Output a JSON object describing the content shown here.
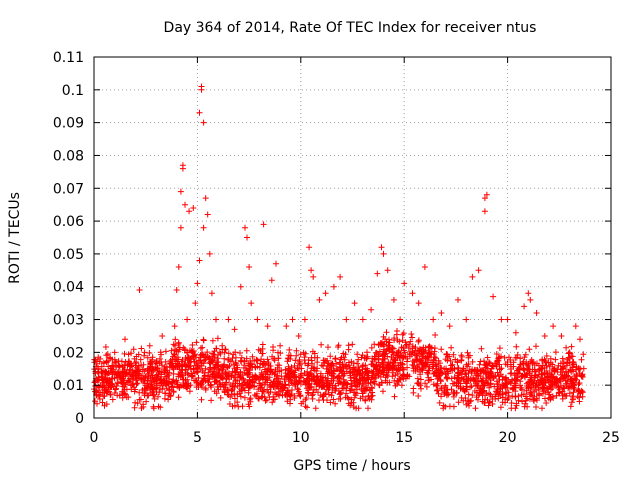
{
  "chart_data": {
    "type": "scatter",
    "title": "Day 364 of 2014, Rate Of TEC Index for receiver ntus",
    "xlabel": "GPS time / hours",
    "ylabel": "ROTI / TECUs",
    "xlim": [
      0,
      25
    ],
    "ylim": [
      0,
      0.11
    ],
    "xticks": [
      0,
      5,
      10,
      15,
      20,
      25
    ],
    "xtick_labels": [
      "0",
      "5",
      "10",
      "15",
      "20",
      "25"
    ],
    "yticks": [
      0,
      0.01,
      0.02,
      0.03,
      0.04,
      0.05,
      0.06,
      0.07,
      0.08,
      0.09,
      0.1,
      0.11
    ],
    "ytick_labels": [
      "0",
      "0.01",
      "0.02",
      "0.03",
      "0.04",
      "0.05",
      "0.06",
      "0.07",
      "0.08",
      "0.09",
      "0.1",
      "0.11"
    ],
    "grid": true,
    "marker": "+",
    "color": "#ff0000",
    "series": [
      {
        "name": "ROTI",
        "note": "dense band ~0.005-0.025 from 0 to 23.7 h; representative points listed",
        "points": [
          [
            0.1,
            0.012
          ],
          [
            0.3,
            0.018
          ],
          [
            0.5,
            0.01
          ],
          [
            0.8,
            0.015
          ],
          [
            1.0,
            0.02
          ],
          [
            1.3,
            0.011
          ],
          [
            1.5,
            0.024
          ],
          [
            1.7,
            0.014
          ],
          [
            2.0,
            0.016
          ],
          [
            2.2,
            0.039
          ],
          [
            2.4,
            0.012
          ],
          [
            2.7,
            0.022
          ],
          [
            3.0,
            0.017
          ],
          [
            3.3,
            0.025
          ],
          [
            3.6,
            0.013
          ],
          [
            3.9,
            0.028
          ],
          [
            4.0,
            0.039
          ],
          [
            4.1,
            0.046
          ],
          [
            4.2,
            0.058
          ],
          [
            4.2,
            0.069
          ],
          [
            4.3,
            0.076
          ],
          [
            4.3,
            0.077
          ],
          [
            4.4,
            0.065
          ],
          [
            4.5,
            0.03
          ],
          [
            4.6,
            0.063
          ],
          [
            4.8,
            0.064
          ],
          [
            4.9,
            0.035
          ],
          [
            5.0,
            0.041
          ],
          [
            5.1,
            0.048
          ],
          [
            5.1,
            0.093
          ],
          [
            5.2,
            0.1
          ],
          [
            5.2,
            0.101
          ],
          [
            5.3,
            0.09
          ],
          [
            5.3,
            0.058
          ],
          [
            5.4,
            0.067
          ],
          [
            5.5,
            0.062
          ],
          [
            5.6,
            0.05
          ],
          [
            5.7,
            0.038
          ],
          [
            5.9,
            0.03
          ],
          [
            6.2,
            0.022
          ],
          [
            6.5,
            0.03
          ],
          [
            6.8,
            0.027
          ],
          [
            7.1,
            0.04
          ],
          [
            7.3,
            0.058
          ],
          [
            7.4,
            0.055
          ],
          [
            7.5,
            0.046
          ],
          [
            7.6,
            0.035
          ],
          [
            7.9,
            0.03
          ],
          [
            8.2,
            0.059
          ],
          [
            8.4,
            0.028
          ],
          [
            8.6,
            0.042
          ],
          [
            8.8,
            0.047
          ],
          [
            9.0,
            0.022
          ],
          [
            9.3,
            0.028
          ],
          [
            9.6,
            0.03
          ],
          [
            9.9,
            0.025
          ],
          [
            10.2,
            0.03
          ],
          [
            10.4,
            0.052
          ],
          [
            10.5,
            0.045
          ],
          [
            10.6,
            0.043
          ],
          [
            10.9,
            0.036
          ],
          [
            11.2,
            0.038
          ],
          [
            11.6,
            0.04
          ],
          [
            11.9,
            0.043
          ],
          [
            12.2,
            0.03
          ],
          [
            12.6,
            0.035
          ],
          [
            13.0,
            0.03
          ],
          [
            13.4,
            0.033
          ],
          [
            13.7,
            0.044
          ],
          [
            13.9,
            0.052
          ],
          [
            14.0,
            0.05
          ],
          [
            14.2,
            0.045
          ],
          [
            14.5,
            0.036
          ],
          [
            14.8,
            0.03
          ],
          [
            15.0,
            0.041
          ],
          [
            15.4,
            0.038
          ],
          [
            15.7,
            0.035
          ],
          [
            16.0,
            0.046
          ],
          [
            16.4,
            0.03
          ],
          [
            16.8,
            0.032
          ],
          [
            17.2,
            0.028
          ],
          [
            17.6,
            0.036
          ],
          [
            18.0,
            0.03
          ],
          [
            18.3,
            0.043
          ],
          [
            18.6,
            0.045
          ],
          [
            18.9,
            0.067
          ],
          [
            18.9,
            0.063
          ],
          [
            19.0,
            0.068
          ],
          [
            19.3,
            0.037
          ],
          [
            19.7,
            0.03
          ],
          [
            20.0,
            0.03
          ],
          [
            20.4,
            0.026
          ],
          [
            20.8,
            0.034
          ],
          [
            21.0,
            0.038
          ],
          [
            21.1,
            0.036
          ],
          [
            21.4,
            0.032
          ],
          [
            21.8,
            0.025
          ],
          [
            22.2,
            0.028
          ],
          [
            22.6,
            0.025
          ],
          [
            23.0,
            0.02
          ],
          [
            23.3,
            0.028
          ],
          [
            23.5,
            0.024
          ]
        ]
      }
    ]
  }
}
